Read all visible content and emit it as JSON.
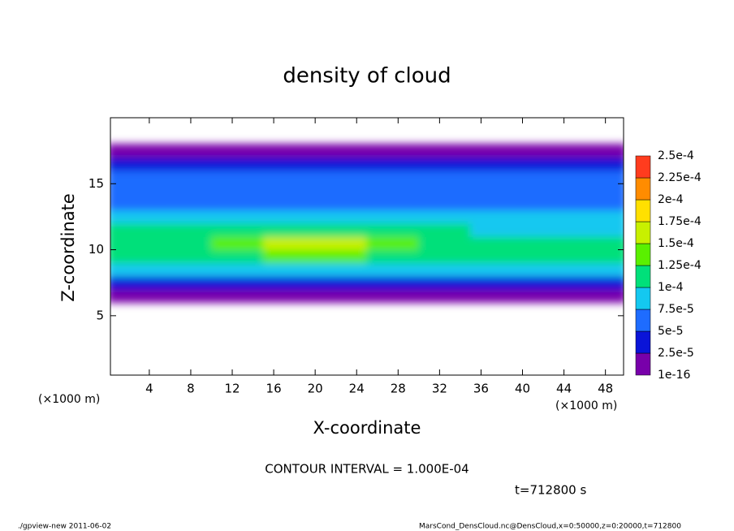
{
  "chart_data": {
    "type": "contour",
    "title": "density of cloud",
    "x_label": "X-coordinate",
    "y_label": "Z-coordinate",
    "x_unit": "(×1000 m)",
    "y_unit": "(×1000 m)",
    "x": [
      2.5,
      7.5,
      12.5,
      17.5,
      22.5,
      27.5,
      32.5,
      37.5,
      42.5,
      47.5
    ],
    "z": [
      6.5,
      7.5,
      8.5,
      9.5,
      10.5,
      11.5,
      12.5,
      13.5,
      14.5,
      15.5,
      16.5,
      17.5
    ],
    "values": [
      [
        5e-06,
        5e-06,
        5e-06,
        5e-06,
        5e-06,
        5e-06,
        5e-06,
        5e-06,
        5e-06,
        5e-06
      ],
      [
        4e-05,
        4e-05,
        4e-05,
        4e-05,
        4e-05,
        4e-05,
        4e-05,
        4e-05,
        4e-05,
        4e-05
      ],
      [
        8e-05,
        8e-05,
        8e-05,
        8e-05,
        8e-05,
        8e-05,
        8e-05,
        8e-05,
        8e-05,
        8e-05
      ],
      [
        0.00011,
        0.00011,
        0.00012,
        0.00013,
        0.00013,
        0.00012,
        0.00011,
        0.00011,
        0.00011,
        0.00011
      ],
      [
        0.00012,
        0.00012,
        0.00014,
        0.00015,
        0.00015,
        0.00013,
        0.00012,
        0.00012,
        0.00011,
        0.00011
      ],
      [
        0.0001,
        0.0001,
        0.00011,
        0.00012,
        0.00011,
        0.0001,
        0.0001,
        9e-05,
        9e-05,
        9e-05
      ],
      [
        8e-05,
        8e-05,
        8e-05,
        8e-05,
        8e-05,
        8e-05,
        8e-05,
        8e-05,
        8e-05,
        8e-05
      ],
      [
        7e-05,
        7e-05,
        7e-05,
        7e-05,
        7e-05,
        7e-05,
        7e-05,
        7e-05,
        7e-05,
        7e-05
      ],
      [
        6e-05,
        6e-05,
        6e-05,
        6e-05,
        6e-05,
        6e-05,
        6e-05,
        6e-05,
        6e-05,
        6e-05
      ],
      [
        5e-05,
        5e-05,
        5e-05,
        5e-05,
        5e-05,
        5e-05,
        5e-05,
        5e-05,
        5e-05,
        5e-05
      ],
      [
        3e-05,
        3e-05,
        3e-05,
        3e-05,
        3e-05,
        3e-05,
        3e-05,
        3e-05,
        3e-05,
        3e-05
      ],
      [
        1e-05,
        1e-05,
        1e-05,
        1e-05,
        1e-05,
        1e-05,
        1e-05,
        1e-05,
        1e-05,
        1e-05
      ]
    ],
    "xlim": [
      0.25,
      49.75
    ],
    "ylim": [
      0.5,
      20
    ],
    "xticks": [
      4,
      8,
      12,
      16,
      20,
      24,
      28,
      32,
      36,
      40,
      44,
      48
    ],
    "yticks": [
      5,
      10,
      15
    ],
    "colorbar": {
      "ticks": [
        {
          "value": 1e-16,
          "label": "1e-16"
        },
        {
          "value": 2.5e-05,
          "label": "2.5e-5"
        },
        {
          "value": 5e-05,
          "label": "5e-5"
        },
        {
          "value": 7.5e-05,
          "label": "7.5e-5"
        },
        {
          "value": 0.0001,
          "label": "1e-4"
        },
        {
          "value": 0.000125,
          "label": "1.25e-4"
        },
        {
          "value": 0.00015,
          "label": "1.5e-4"
        },
        {
          "value": 0.000175,
          "label": "1.75e-4"
        },
        {
          "value": 0.0002,
          "label": "2e-4"
        },
        {
          "value": 0.000225,
          "label": "2.25e-4"
        },
        {
          "value": 0.00025,
          "label": "2.5e-4"
        }
      ],
      "colors": [
        "#7800aa",
        "#0a14d8",
        "#1e6cff",
        "#14c8f0",
        "#00e07a",
        "#5af000",
        "#c8f000",
        "#ffe000",
        "#ff8c00",
        "#ff3c1e"
      ]
    },
    "contour_note": "CONTOUR INTERVAL = 1.000E-04",
    "time_note": "t=712800 s",
    "footer_left": "./gpview-new  2011-06-02",
    "footer_right": "MarsCond_DensCloud.nc@DensCloud,x=0:50000,z=0:20000,t=712800"
  }
}
